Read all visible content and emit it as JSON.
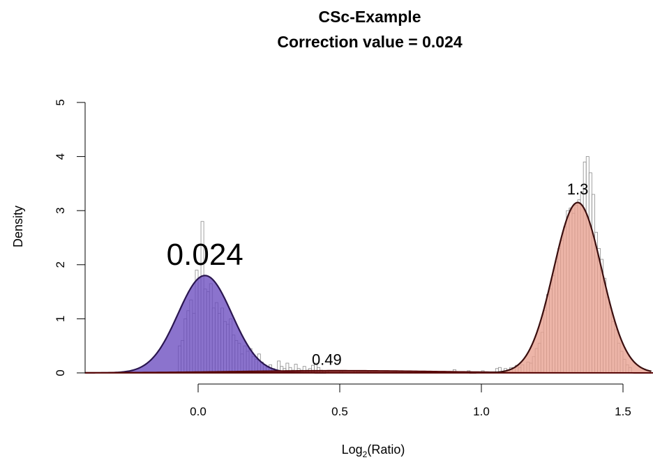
{
  "chart_data": {
    "type": "histogram",
    "title": "CSc-Example",
    "subtitle": "Correction value = 0.024",
    "ylabel": "Density",
    "xlabel_base": "Log",
    "xlabel_sub": "2",
    "xlabel_rest": "(Ratio)",
    "xlim": [
      -0.4,
      1.6
    ],
    "ylim": [
      0,
      5
    ],
    "x_ticks": [
      0.0,
      0.5,
      1.0,
      1.5
    ],
    "x_tick_labels": [
      "0.0",
      "0.5",
      "1.0",
      "1.5"
    ],
    "y_ticks": [
      0,
      1,
      2,
      3,
      4,
      5
    ],
    "y_tick_labels": [
      "0",
      "1",
      "2",
      "3",
      "4",
      "5"
    ],
    "components": [
      {
        "mean": 0.024,
        "sd": 0.095,
        "peak_density": 1.8,
        "fill": "#6a4bbf",
        "stroke": "#2a1650"
      },
      {
        "mean": 0.49,
        "sd": 0.35,
        "peak_density": 0.04,
        "fill": "#8b1a1a",
        "stroke": "#5a0a0a"
      },
      {
        "mean": 1.34,
        "sd": 0.085,
        "peak_density": 3.15,
        "fill": "#e8a090",
        "stroke": "#3a0e0e"
      }
    ],
    "peak_labels": [
      {
        "text": "0.024",
        "x": 0.024,
        "y": 2.0,
        "size": "large"
      },
      {
        "text": "0.49",
        "x": 0.49,
        "y": 0.15,
        "size": "small"
      },
      {
        "text": "1.3",
        "x": 1.34,
        "y": 3.3,
        "size": "small"
      }
    ],
    "histogram_bin_width": 0.01,
    "histogram_bars": [
      [
        -0.07,
        0.5
      ],
      [
        -0.06,
        0.6
      ],
      [
        -0.05,
        1.0
      ],
      [
        -0.04,
        1.15
      ],
      [
        -0.03,
        1.35
      ],
      [
        -0.02,
        1.1
      ],
      [
        -0.01,
        1.9
      ],
      [
        0.0,
        1.75
      ],
      [
        0.01,
        2.8
      ],
      [
        0.02,
        1.55
      ],
      [
        0.03,
        1.5
      ],
      [
        0.04,
        1.65
      ],
      [
        0.05,
        1.2
      ],
      [
        0.06,
        1.3
      ],
      [
        0.07,
        1.1
      ],
      [
        0.08,
        1.2
      ],
      [
        0.09,
        0.95
      ],
      [
        0.1,
        0.9
      ],
      [
        0.11,
        1.0
      ],
      [
        0.12,
        0.7
      ],
      [
        0.13,
        0.6
      ],
      [
        0.14,
        0.55
      ],
      [
        0.15,
        0.35
      ],
      [
        0.16,
        0.5
      ],
      [
        0.17,
        0.4
      ],
      [
        0.18,
        0.45
      ],
      [
        0.19,
        0.3
      ],
      [
        0.2,
        0.25
      ],
      [
        0.21,
        0.35
      ],
      [
        0.22,
        0.2
      ],
      [
        0.23,
        0.15
      ],
      [
        0.24,
        0.1
      ],
      [
        0.25,
        0.15
      ],
      [
        0.26,
        0.08
      ],
      [
        0.27,
        0.05
      ],
      [
        0.28,
        0.22
      ],
      [
        0.29,
        0.12
      ],
      [
        0.3,
        0.08
      ],
      [
        0.31,
        0.18
      ],
      [
        0.32,
        0.1
      ],
      [
        0.33,
        0.05
      ],
      [
        0.34,
        0.16
      ],
      [
        0.35,
        0.08
      ],
      [
        0.36,
        0.05
      ],
      [
        0.37,
        0.12
      ],
      [
        0.38,
        0.05
      ],
      [
        0.39,
        0.08
      ],
      [
        0.4,
        0.14
      ],
      [
        0.41,
        0.18
      ],
      [
        0.42,
        0.1
      ],
      [
        0.43,
        0.05
      ],
      [
        0.44,
        0.04
      ],
      [
        0.45,
        0.03
      ],
      [
        0.5,
        0.03
      ],
      [
        0.55,
        0.04
      ],
      [
        0.6,
        0.03
      ],
      [
        0.7,
        0.04
      ],
      [
        0.8,
        0.03
      ],
      [
        0.9,
        0.06
      ],
      [
        0.95,
        0.04
      ],
      [
        1.0,
        0.04
      ],
      [
        1.05,
        0.08
      ],
      [
        1.06,
        0.1
      ],
      [
        1.08,
        0.08
      ],
      [
        1.1,
        0.1
      ],
      [
        1.12,
        0.14
      ],
      [
        1.13,
        0.1
      ],
      [
        1.14,
        0.15
      ],
      [
        1.16,
        0.2
      ],
      [
        1.17,
        0.18
      ],
      [
        1.18,
        0.3
      ],
      [
        1.19,
        0.45
      ],
      [
        1.2,
        0.55
      ],
      [
        1.21,
        0.75
      ],
      [
        1.22,
        1.15
      ],
      [
        1.23,
        1.45
      ],
      [
        1.24,
        1.55
      ],
      [
        1.25,
        1.8
      ],
      [
        1.26,
        2.05
      ],
      [
        1.27,
        2.3
      ],
      [
        1.28,
        2.45
      ],
      [
        1.29,
        2.7
      ],
      [
        1.3,
        3.0
      ],
      [
        1.31,
        3.05
      ],
      [
        1.32,
        2.95
      ],
      [
        1.33,
        3.1
      ],
      [
        1.34,
        3.2
      ],
      [
        1.35,
        3.35
      ],
      [
        1.36,
        3.9
      ],
      [
        1.37,
        4.0
      ],
      [
        1.38,
        3.7
      ],
      [
        1.39,
        3.3
      ],
      [
        1.4,
        2.6
      ],
      [
        1.41,
        2.3
      ],
      [
        1.42,
        2.1
      ],
      [
        1.43,
        1.75
      ],
      [
        1.44,
        1.4
      ],
      [
        1.45,
        1.2
      ],
      [
        1.46,
        0.95
      ],
      [
        1.47,
        0.8
      ],
      [
        1.48,
        0.55
      ],
      [
        1.49,
        0.4
      ],
      [
        1.5,
        0.25
      ],
      [
        1.51,
        0.15
      ],
      [
        1.52,
        0.1
      ]
    ]
  }
}
